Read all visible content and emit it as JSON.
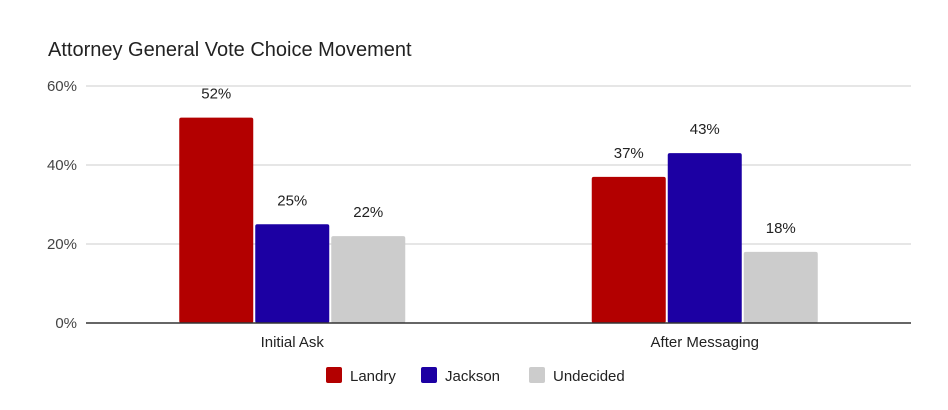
{
  "chart_data": {
    "type": "bar",
    "title": "Attorney General Vote Choice Movement",
    "categories": [
      "Initial Ask",
      "After Messaging"
    ],
    "series": [
      {
        "name": "Landry",
        "values": [
          52,
          37
        ],
        "color": "#b30000"
      },
      {
        "name": "Jackson",
        "values": [
          25,
          43
        ],
        "color": "#1c00a3"
      },
      {
        "name": "Undecided",
        "values": [
          22,
          18
        ],
        "color": "#cccccc"
      }
    ],
    "data_labels": [
      [
        "52%",
        "37%"
      ],
      [
        "25%",
        "43%"
      ],
      [
        "22%",
        "18%"
      ]
    ],
    "yticks": [
      0,
      20,
      40,
      60
    ],
    "ytick_labels": [
      "0%",
      "20%",
      "40%",
      "60%"
    ],
    "ylim": [
      0,
      60
    ],
    "grid": true,
    "legend": "bottom",
    "xlabel": "",
    "ylabel": ""
  }
}
